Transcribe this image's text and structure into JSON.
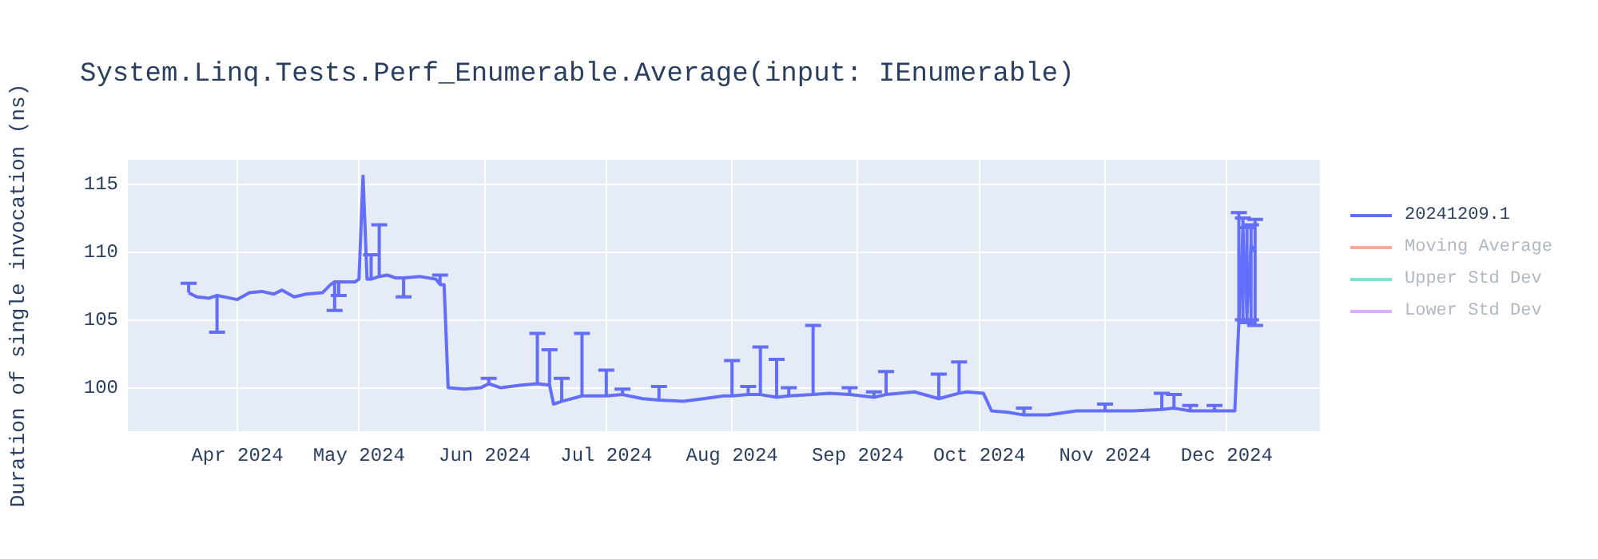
{
  "chart_data": {
    "type": "line",
    "title": "System.Linq.Tests.Perf_Enumerable.Average(input: IEnumerable)",
    "ylabel": "Duration of single invocation (ns)",
    "xlim": [
      "2024-03-05",
      "2024-12-24"
    ],
    "ylim": [
      96.8,
      116.8
    ],
    "xticks": [
      {
        "value": "2024-04-01",
        "label": "Apr 2024"
      },
      {
        "value": "2024-05-01",
        "label": "May 2024"
      },
      {
        "value": "2024-06-01",
        "label": "Jun 2024"
      },
      {
        "value": "2024-07-01",
        "label": "Jul 2024"
      },
      {
        "value": "2024-08-01",
        "label": "Aug 2024"
      },
      {
        "value": "2024-09-01",
        "label": "Sep 2024"
      },
      {
        "value": "2024-10-01",
        "label": "Oct 2024"
      },
      {
        "value": "2024-11-01",
        "label": "Nov 2024"
      },
      {
        "value": "2024-12-01",
        "label": "Dec 2024"
      }
    ],
    "yticks": [
      100,
      105,
      110,
      115
    ],
    "grid": true,
    "legend": "top right",
    "marker": "none",
    "line_style": "solid",
    "series": [
      {
        "name": "20241209.1",
        "color": "#636efa",
        "x": [
          "2024-03-20",
          "2024-03-22",
          "2024-03-25",
          "2024-03-27",
          "2024-04-01",
          "2024-04-04",
          "2024-04-07",
          "2024-04-10",
          "2024-04-12",
          "2024-04-15",
          "2024-04-18",
          "2024-04-22",
          "2024-04-24",
          "2024-04-25",
          "2024-04-26",
          "2024-04-30",
          "2024-05-01",
          "2024-05-02",
          "2024-05-03",
          "2024-05-04",
          "2024-05-06",
          "2024-05-08",
          "2024-05-10",
          "2024-05-12",
          "2024-05-16",
          "2024-05-20",
          "2024-05-21",
          "2024-05-22",
          "2024-05-23",
          "2024-05-27",
          "2024-05-31",
          "2024-06-02",
          "2024-06-05",
          "2024-06-10",
          "2024-06-14",
          "2024-06-17",
          "2024-06-18",
          "2024-06-20",
          "2024-06-25",
          "2024-07-01",
          "2024-07-05",
          "2024-07-10",
          "2024-07-14",
          "2024-07-20",
          "2024-07-25",
          "2024-07-30",
          "2024-08-01",
          "2024-08-05",
          "2024-08-08",
          "2024-08-12",
          "2024-08-15",
          "2024-08-21",
          "2024-08-25",
          "2024-08-30",
          "2024-09-05",
          "2024-09-08",
          "2024-09-15",
          "2024-09-21",
          "2024-09-26",
          "2024-09-28",
          "2024-10-02",
          "2024-10-04",
          "2024-10-08",
          "2024-10-12",
          "2024-10-18",
          "2024-10-25",
          "2024-11-01",
          "2024-11-08",
          "2024-11-15",
          "2024-11-18",
          "2024-11-22",
          "2024-11-28",
          "2024-12-03",
          "2024-12-04",
          "2024-12-05",
          "2024-12-06",
          "2024-12-07",
          "2024-12-08"
        ],
        "values": [
          107.0,
          106.7,
          106.6,
          106.8,
          106.5,
          107.0,
          107.1,
          106.9,
          107.2,
          106.7,
          106.9,
          107.0,
          107.6,
          107.8,
          107.8,
          107.8,
          108.0,
          115.6,
          108.0,
          108.0,
          108.2,
          108.3,
          108.1,
          108.1,
          108.2,
          108.0,
          107.6,
          107.6,
          100.0,
          99.9,
          100.0,
          100.3,
          100.0,
          100.2,
          100.3,
          100.2,
          98.8,
          99.0,
          99.4,
          99.4,
          99.5,
          99.2,
          99.1,
          99.0,
          99.2,
          99.4,
          99.4,
          99.5,
          99.5,
          99.3,
          99.4,
          99.5,
          99.6,
          99.5,
          99.3,
          99.5,
          99.7,
          99.2,
          99.6,
          99.7,
          99.6,
          98.3,
          98.2,
          98.0,
          98.0,
          98.3,
          98.3,
          98.3,
          98.4,
          98.5,
          98.3,
          98.3,
          98.3,
          104.8,
          111.5,
          105.5,
          110.5,
          110.0
        ],
        "errors": [
          [
            107.0,
            107.7
          ],
          null,
          null,
          [
            104.1,
            106.8
          ],
          null,
          null,
          null,
          null,
          null,
          null,
          null,
          null,
          null,
          [
            105.7,
            107.8
          ],
          [
            106.8,
            107.8
          ],
          null,
          null,
          null,
          null,
          [
            108.0,
            109.8
          ],
          [
            108.2,
            112.0
          ],
          null,
          null,
          [
            106.7,
            108.1
          ],
          null,
          null,
          [
            107.6,
            108.3
          ],
          null,
          null,
          null,
          null,
          [
            100.3,
            100.7
          ],
          null,
          null,
          [
            100.3,
            104.0
          ],
          [
            100.2,
            102.8
          ],
          null,
          [
            99.0,
            100.7
          ],
          [
            99.4,
            104.0
          ],
          [
            99.4,
            101.3
          ],
          [
            99.5,
            99.9
          ],
          null,
          [
            99.1,
            100.1
          ],
          null,
          null,
          null,
          [
            99.4,
            102.0
          ],
          [
            99.5,
            100.1
          ],
          [
            99.5,
            103.0
          ],
          [
            99.3,
            102.1
          ],
          [
            99.4,
            100.0
          ],
          [
            99.5,
            104.6
          ],
          null,
          [
            99.5,
            100.0
          ],
          [
            99.3,
            99.7
          ],
          [
            99.5,
            101.2
          ],
          null,
          [
            99.2,
            101.0
          ],
          [
            99.6,
            101.9
          ],
          null,
          null,
          null,
          null,
          [
            98.0,
            98.5
          ],
          null,
          null,
          [
            98.3,
            98.8
          ],
          null,
          [
            98.4,
            99.6
          ],
          [
            98.5,
            99.5
          ],
          [
            98.3,
            98.7
          ],
          [
            98.3,
            98.7
          ],
          null,
          [
            104.8,
            112.9
          ],
          [
            105.0,
            112.5
          ],
          [
            104.8,
            111.8
          ],
          [
            105.0,
            112.0
          ],
          [
            104.6,
            112.4
          ]
        ]
      },
      {
        "name": "Moving Average",
        "color": "#ef553b"
      },
      {
        "name": "Upper Std Dev",
        "color": "#00cc96"
      },
      {
        "name": "Lower Std Dev",
        "color": "#ab63fa"
      }
    ]
  }
}
